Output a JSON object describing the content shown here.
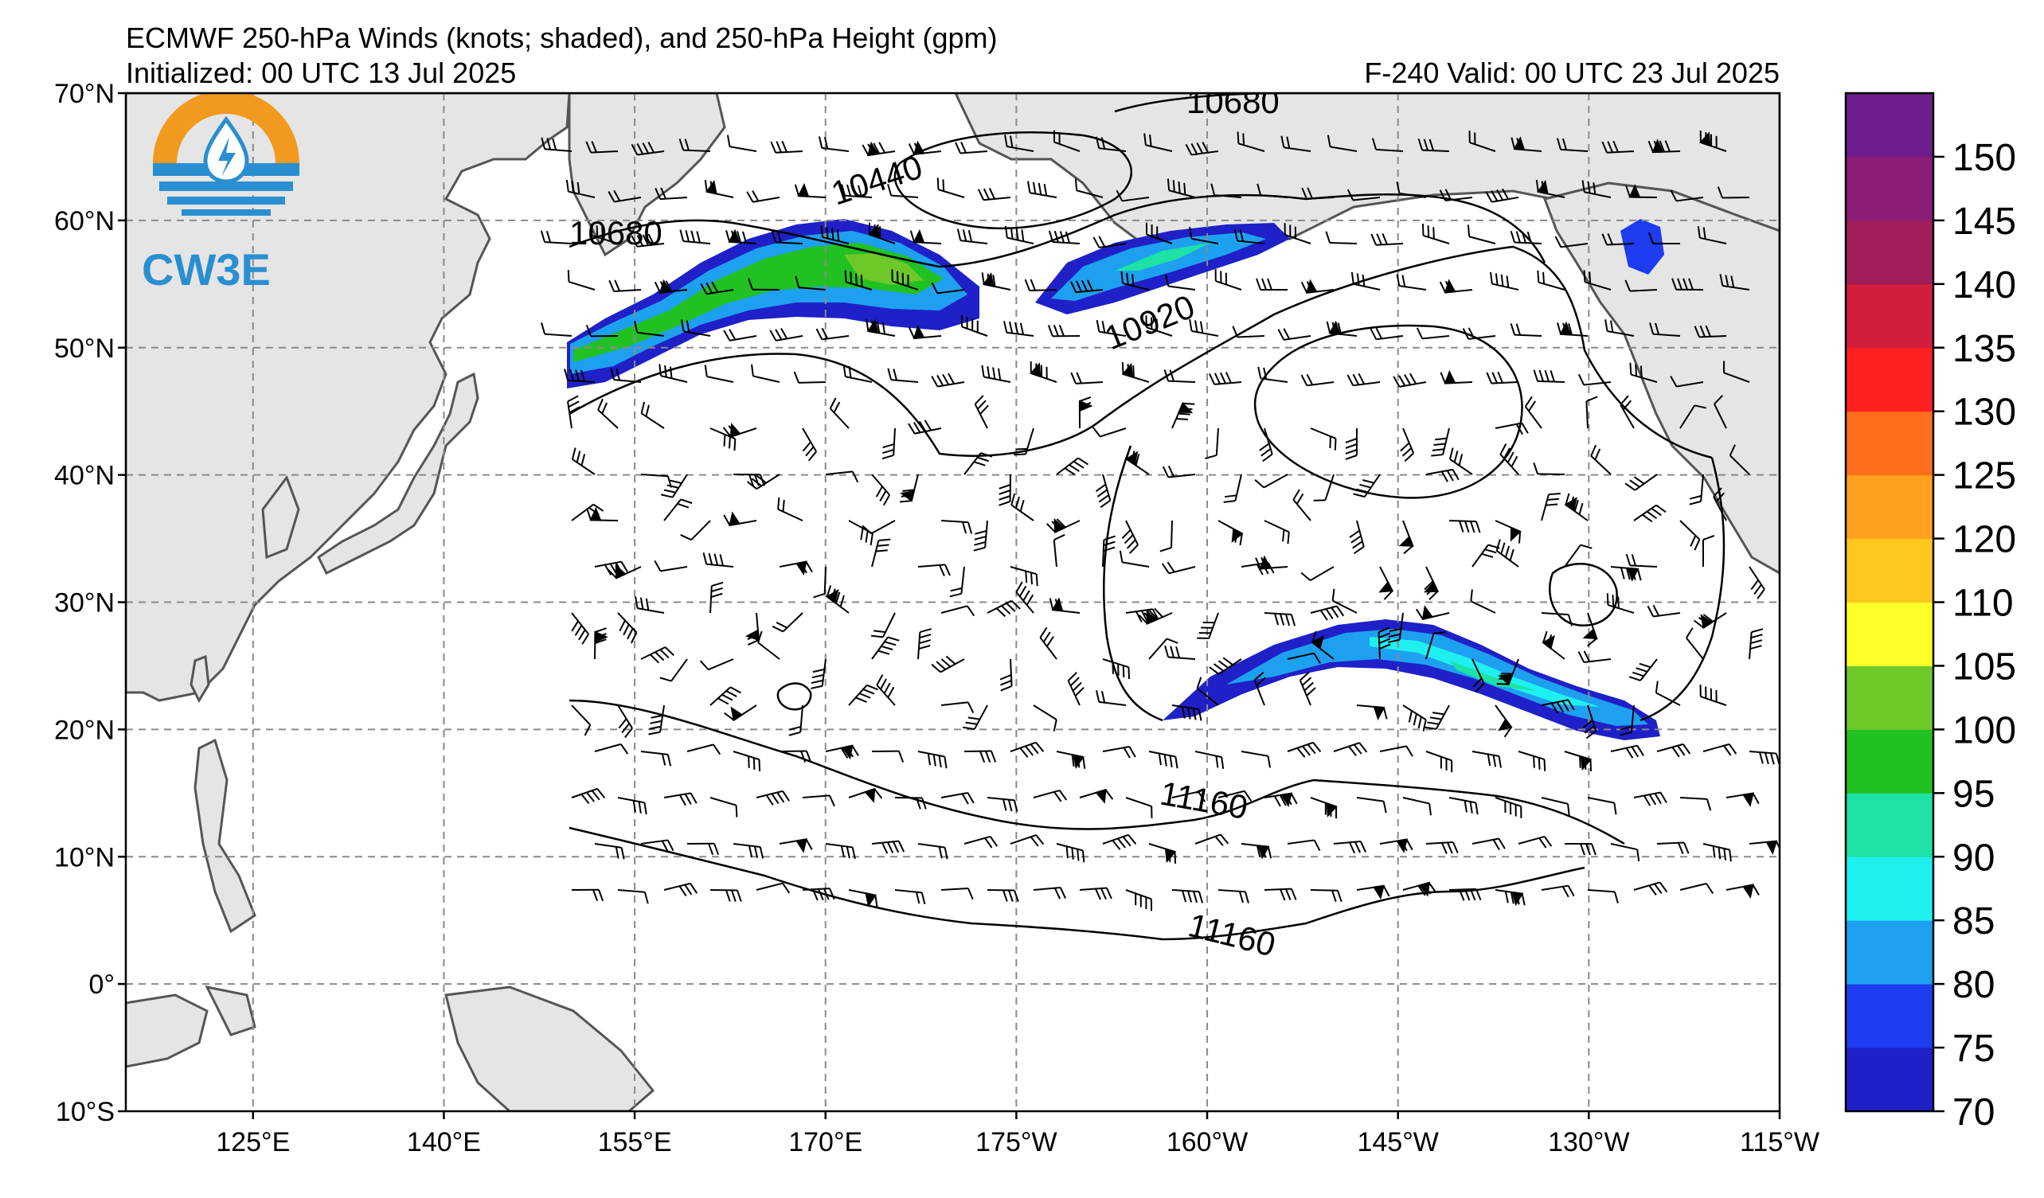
{
  "header": {
    "title": "ECMWF 250-hPa Winds (knots; shaded), and 250-hPa Height (gpm)",
    "initialized": "Initialized: 00 UTC 13 Jul 2025",
    "valid": "F-240  Valid: 00 UTC 23 Jul 2025"
  },
  "logo": {
    "text": "CW3E",
    "icon": "droplet-lightning-icon"
  },
  "axes": {
    "lat_labels": [
      "70°N",
      "60°N",
      "50°N",
      "40°N",
      "30°N",
      "20°N",
      "10°N",
      "0°",
      "10°S"
    ],
    "lon_labels": [
      "125°E",
      "140°E",
      "155°E",
      "170°E",
      "175°W",
      "160°W",
      "145°W",
      "130°W",
      "115°W"
    ],
    "lat_range": [
      -10,
      70
    ],
    "lon_range_east": [
      115,
      245
    ],
    "grid": true
  },
  "contour_labels": [
    "10680",
    "10440",
    "10680",
    "10920",
    "11160",
    "11160"
  ],
  "colorbar": {
    "labels": [
      "70",
      "75",
      "80",
      "85",
      "90",
      "95",
      "100",
      "105",
      "110",
      "120",
      "125",
      "130",
      "135",
      "140",
      "145",
      "150"
    ],
    "colors": [
      "#2020c8",
      "#1e3cf0",
      "#1ea0f0",
      "#1ef0f0",
      "#1ee1a5",
      "#21c121",
      "#6ec82a",
      "#ffff28",
      "#ffc81e",
      "#ffa01e",
      "#ff6e1e",
      "#ff2020",
      "#d21e3c",
      "#a01e5a",
      "#8c1e78",
      "#6e1e8c"
    ]
  },
  "colors": {
    "land": "#e5e5e5",
    "coast": "#555555",
    "grid": "#8a8a8a",
    "contour": "#000000"
  }
}
